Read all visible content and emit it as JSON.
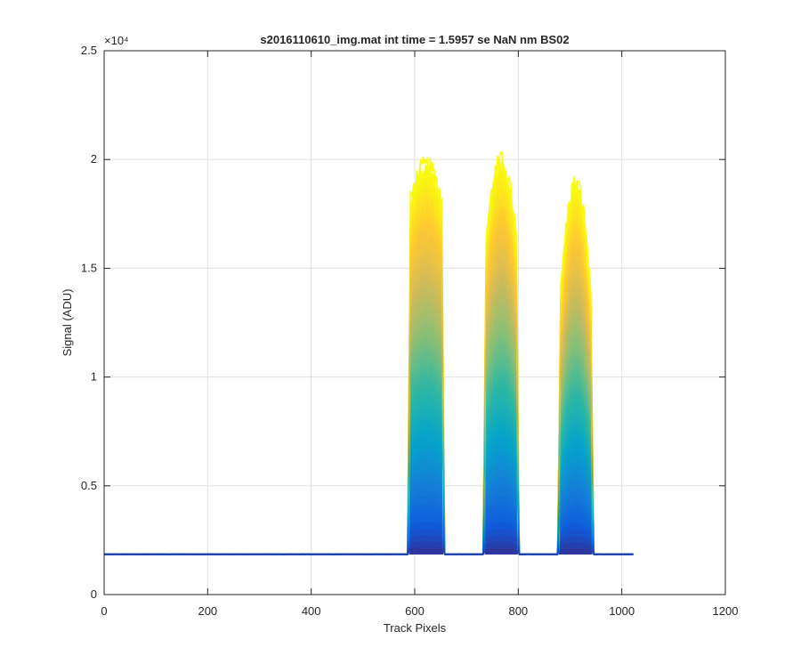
{
  "chart_data": {
    "type": "line",
    "title": "s2016110610_img.mat int time = 1.5957 se  NaN nm BS02",
    "xlabel": "Track Pixels",
    "ylabel": "Signal (ADU)",
    "xlim": [
      0,
      1200
    ],
    "ylim": [
      0,
      25000
    ],
    "x_ticks": [
      0,
      200,
      400,
      600,
      800,
      1000,
      1200
    ],
    "x_tick_labels": [
      "0",
      "200",
      "400",
      "600",
      "800",
      "1000",
      "1200"
    ],
    "y_ticks": [
      0,
      5000,
      10000,
      15000,
      20000,
      25000
    ],
    "y_tick_labels": [
      "0",
      "0.5",
      "1",
      "1.5",
      "2",
      "2.5"
    ],
    "y_exponent_label": "×10⁴",
    "grid": true,
    "colormap": "parula",
    "colormap_stops": [
      "#352a87",
      "#0f5cdd",
      "#1481d6",
      "#06a4ca",
      "#2eb7a4",
      "#87bf77",
      "#d1bb59",
      "#fec832",
      "#f9fb0e"
    ],
    "series_count": 40,
    "baseline": 1850,
    "x_end": 1023,
    "peaks": [
      {
        "x_start": 592,
        "x_end": 652,
        "max": 19800,
        "shoulder": 18200
      },
      {
        "x_start": 738,
        "x_end": 796,
        "max": 20000,
        "shoulder": 16500
      },
      {
        "x_start": 882,
        "x_end": 940,
        "max": 19000,
        "shoulder": 14000
      }
    ]
  }
}
